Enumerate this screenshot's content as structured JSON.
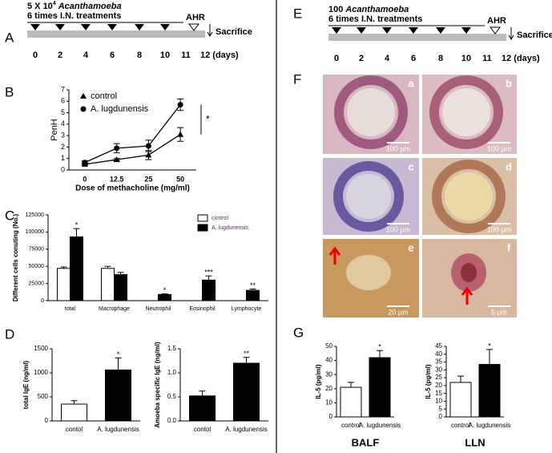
{
  "panel_labels": [
    "A",
    "B",
    "C",
    "D",
    "E",
    "F",
    "G"
  ],
  "timelines": [
    {
      "dose": "5 X 10",
      "exponent": "4",
      "organism": "Acanthamoeba",
      "treatments": "6 times I.N. treatments",
      "ahr": "AHR",
      "sacrifice": "Sacrifice",
      "days": [
        "0",
        "2",
        "4",
        "6",
        "8",
        "10",
        "11",
        "12 (days)"
      ]
    },
    {
      "dose": "100",
      "organism": "Acanthamoeba",
      "treatments": "6 times I.N. treatments",
      "ahr": "AHR",
      "sacrifice": "Sacrifice",
      "days": [
        "0",
        "2",
        "4",
        "6",
        "8",
        "10",
        "11",
        "12 (days)"
      ]
    }
  ],
  "histology": {
    "panels": [
      "a",
      "b",
      "c",
      "d",
      "e",
      "f"
    ],
    "scale_bars": [
      "100 µm",
      "100 µm",
      "100 µm",
      "100 µm",
      "20 µm",
      "5 µm"
    ]
  },
  "chart_data": [
    {
      "type": "line",
      "categories": [
        "0",
        "12.5",
        "25",
        "50"
      ],
      "xlabel": "Dose of methacholine (mg/ml)",
      "ylabel": "PenH",
      "ylim": [
        0,
        7
      ],
      "yticks": [
        0,
        1,
        2,
        3,
        4,
        5,
        6,
        7
      ],
      "legend": "upper left",
      "annotation": "*",
      "series": [
        {
          "name": "control",
          "color": "#000000",
          "marker": "triangle",
          "values": [
            0.5,
            0.9,
            1.3,
            3.1
          ],
          "errors": [
            0.1,
            0.1,
            0.4,
            0.6
          ]
        },
        {
          "name": "A. lugdunensis",
          "color": "#000000",
          "marker": "circle",
          "values": [
            0.65,
            1.9,
            2.1,
            5.7
          ],
          "errors": [
            0.15,
            0.4,
            0.5,
            0.5
          ]
        }
      ]
    },
    {
      "type": "bar",
      "categories": [
        "total",
        "Macrophage",
        "Neutrophil",
        "Eosinophil",
        "Lymphocyte"
      ],
      "ylabel": "Different cells conuting (No.)",
      "ylim": [
        0,
        125000
      ],
      "yticks": [
        0,
        25000,
        50000,
        75000,
        100000,
        125000
      ],
      "legend": "upper right",
      "significance": [
        "*",
        null,
        "*",
        "***",
        "**"
      ],
      "series": [
        {
          "name": "control",
          "color": "#ffffff",
          "values": [
            47000,
            47000,
            0,
            0,
            0
          ],
          "errors": [
            2000,
            3000,
            0,
            0,
            0
          ]
        },
        {
          "name": "A. lugdunensis",
          "color": "#000000",
          "values": [
            93000,
            38000,
            9000,
            30000,
            15000
          ],
          "errors": [
            12000,
            3000,
            1000,
            6000,
            2000
          ]
        }
      ]
    },
    {
      "type": "bar",
      "categories": [
        "contol",
        "A. lugdunensis"
      ],
      "ylabel": "total IgE (ng/ml)",
      "ylim": [
        0,
        1500
      ],
      "yticks": [
        0,
        500,
        1000,
        1500
      ],
      "significance": [
        null,
        "*"
      ],
      "series": [
        {
          "colors": [
            "#ffffff",
            "#000000"
          ],
          "values": [
            350,
            1060
          ],
          "errors": [
            70,
            250
          ]
        }
      ]
    },
    {
      "type": "bar",
      "categories": [
        "contol",
        "A. lugdunensis"
      ],
      "ylabel": "Amoeba specific IgE (ng/ml)",
      "ylim": [
        0,
        1.5
      ],
      "yticks": [
        {
          "value": 0,
          "label": "0.0"
        },
        {
          "value": 0.5,
          "label": "0.5"
        },
        {
          "value": 1,
          "label": "1.0"
        },
        {
          "value": 1.5,
          "label": "1.5"
        }
      ],
      "significance": [
        null,
        "**"
      ],
      "series": [
        {
          "colors": [
            "#000000",
            "#000000"
          ],
          "values": [
            0.52,
            1.2
          ],
          "errors": [
            0.1,
            0.12
          ]
        }
      ]
    },
    {
      "type": "bar",
      "categories": [
        "control",
        "A. lugdunensis"
      ],
      "xlabel": "BALF",
      "ylabel": "IL-5 (pg/ml)",
      "ylim": [
        0,
        50
      ],
      "yticks": [
        0,
        10,
        20,
        30,
        40,
        50
      ],
      "significance": [
        null,
        "*"
      ],
      "series": [
        {
          "colors": [
            "#ffffff",
            "#000000"
          ],
          "values": [
            21,
            42
          ],
          "errors": [
            3.5,
            5
          ]
        }
      ]
    },
    {
      "type": "bar",
      "categories": [
        "control",
        "A. lugdunensis"
      ],
      "xlabel": "LLN",
      "ylabel": "IL-5 (pg/ml)",
      "ylim": [
        0,
        45
      ],
      "yticks": [
        0,
        5,
        10,
        15,
        20,
        25,
        30,
        35,
        40,
        45
      ],
      "significance": [
        null,
        "*"
      ],
      "series": [
        {
          "colors": [
            "#ffffff",
            "#000000"
          ],
          "values": [
            22,
            33.5
          ],
          "errors": [
            4,
            9.5
          ]
        }
      ]
    }
  ]
}
